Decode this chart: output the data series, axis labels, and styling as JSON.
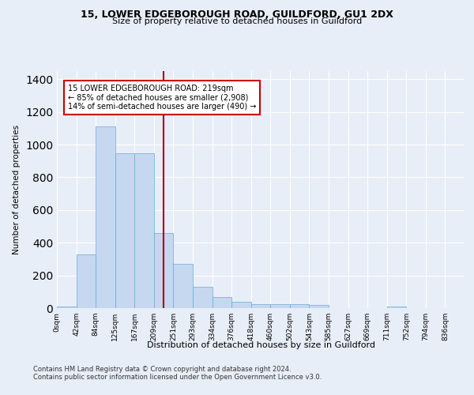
{
  "title1": "15, LOWER EDGEBOROUGH ROAD, GUILDFORD, GU1 2DX",
  "title2": "Size of property relative to detached houses in Guildford",
  "xlabel": "Distribution of detached houses by size in Guildford",
  "ylabel": "Number of detached properties",
  "footnote1": "Contains HM Land Registry data © Crown copyright and database right 2024.",
  "footnote2": "Contains public sector information licensed under the Open Government Licence v3.0.",
  "bar_labels": [
    "0sqm",
    "42sqm",
    "84sqm",
    "125sqm",
    "167sqm",
    "209sqm",
    "251sqm",
    "293sqm",
    "334sqm",
    "376sqm",
    "418sqm",
    "460sqm",
    "502sqm",
    "543sqm",
    "585sqm",
    "627sqm",
    "669sqm",
    "711sqm",
    "752sqm",
    "794sqm",
    "836sqm"
  ],
  "bar_values": [
    10,
    330,
    1110,
    945,
    945,
    460,
    270,
    130,
    70,
    40,
    25,
    25,
    25,
    18,
    0,
    0,
    0,
    12,
    0,
    0,
    0
  ],
  "bar_color": "#c5d8f0",
  "bar_edge_color": "#6aaad4",
  "vline_x": 5.5,
  "vline_color": "#aa0000",
  "annotation_text": "15 LOWER EDGEBOROUGH ROAD: 219sqm\n← 85% of detached houses are smaller (2,908)\n14% of semi-detached houses are larger (490) →",
  "ylim": [
    0,
    1450
  ],
  "background_color": "#e8eef8",
  "plot_background": "#e8eef8",
  "grid_color": "#ffffff"
}
